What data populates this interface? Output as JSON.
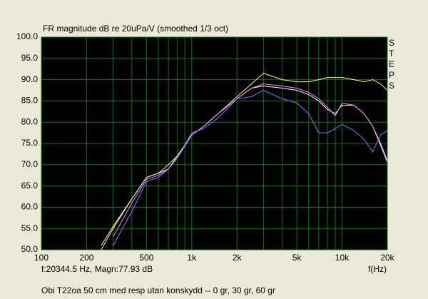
{
  "chart_data": {
    "type": "line",
    "title": "FR magnitude dB re 20uPa/V (smoothed  1/3 oct)",
    "side_label": "STEPS",
    "status": "f:20344.5 Hz, Magn:77.93 dB",
    "x_label": "f(Hz)",
    "caption": "Obi T22oa 50 cm med resp utan konskydd -- 0 gr, 30 gr, 60 gr",
    "x_log": true,
    "grid": true,
    "grid_color": "#0b7a0b",
    "plot_background": "#000000",
    "xlim": [
      100,
      20000
    ],
    "xticks": [
      100,
      200,
      500,
      {
        "value": 1000,
        "label": "1k"
      },
      {
        "value": 2000,
        "label": "2k"
      },
      {
        "value": 5000,
        "label": "5k"
      },
      {
        "value": 10000,
        "label": "10k"
      },
      {
        "value": 20000,
        "label": "20k"
      }
    ],
    "x_minor_ticks": [
      300,
      400,
      600,
      700,
      800,
      900,
      3000,
      4000,
      6000,
      7000,
      8000,
      9000
    ],
    "ylim": [
      50,
      100
    ],
    "yticks": [
      {
        "value": 50,
        "label": "50.0"
      },
      {
        "value": 55,
        "label": "55.0"
      },
      {
        "value": 60,
        "label": "60.0"
      },
      {
        "value": 65,
        "label": "65.0"
      },
      {
        "value": 70,
        "label": "70.0"
      },
      {
        "value": 75,
        "label": "75.0"
      },
      {
        "value": 80,
        "label": "80.0"
      },
      {
        "value": 85,
        "label": "85.0"
      },
      {
        "value": 90,
        "label": "90.0"
      },
      {
        "value": 95,
        "label": "95.0"
      },
      {
        "value": 100,
        "label": "100.0"
      }
    ],
    "x": [
      250,
      300,
      400,
      500,
      600,
      700,
      800,
      1000,
      1200,
      1500,
      2000,
      2500,
      3000,
      4000,
      5000,
      6000,
      7000,
      8000,
      9000,
      10000,
      12000,
      14000,
      16000,
      18000,
      20000
    ],
    "series": [
      {
        "color": "#ffff80",
        "values": [
          50,
          55,
          62,
          67,
          68,
          70,
          72,
          77,
          79,
          82,
          86,
          89,
          91.5,
          90,
          89.5,
          89.5,
          90,
          90.5,
          90.5,
          90.5,
          90,
          89.5,
          90,
          89,
          87.5
        ]
      },
      {
        "color": "#ffffff",
        "values": [
          51,
          55.5,
          62,
          67,
          68,
          69,
          72,
          77,
          79,
          82,
          85.5,
          88,
          88.5,
          88,
          87.5,
          86.5,
          85,
          83,
          82,
          84,
          84,
          82,
          79,
          75,
          71
        ]
      },
      {
        "color": "#ff80ff",
        "values": [
          null,
          53,
          61,
          66.5,
          67.5,
          69,
          71.5,
          77,
          79,
          82,
          85.5,
          88,
          89,
          88.5,
          88,
          87,
          85.5,
          83.5,
          81.5,
          84.5,
          84,
          82,
          79,
          74.5,
          70.5
        ]
      },
      {
        "color": "#8080ff",
        "values": [
          null,
          51,
          59,
          66,
          67,
          69,
          71.5,
          77.5,
          78.5,
          81,
          85.5,
          86,
          87.5,
          85.5,
          84.5,
          82,
          77.5,
          77.5,
          78.5,
          79.5,
          78,
          76,
          73,
          77,
          78
        ]
      }
    ]
  }
}
